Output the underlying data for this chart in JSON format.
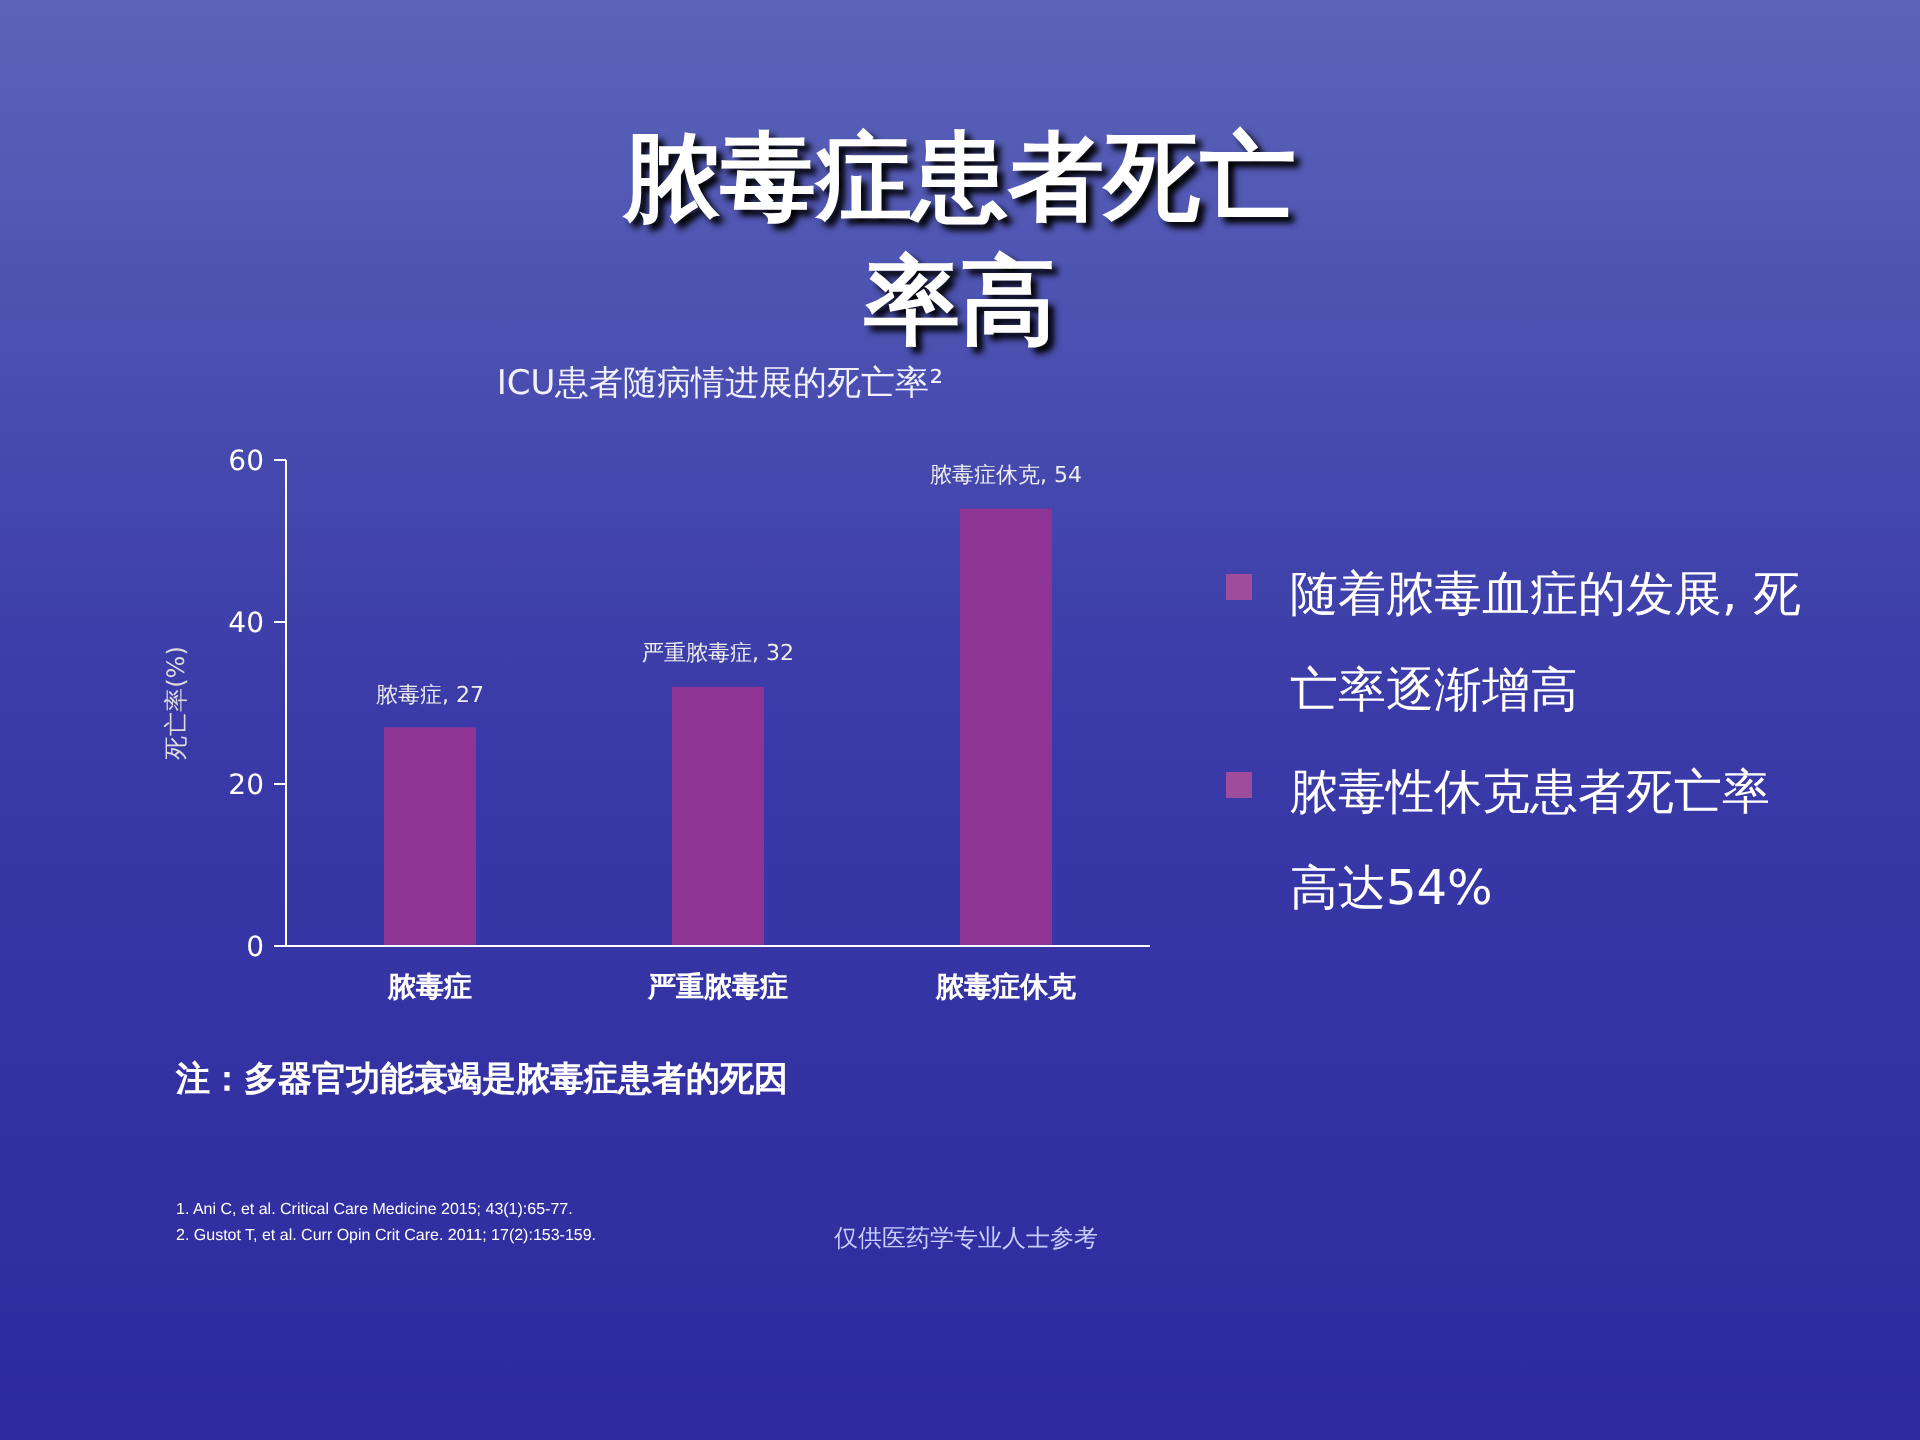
{
  "chart_data": {
    "type": "bar",
    "title": "脓毒症患者死亡率高",
    "subtitle": "ICU患者随病情进展的死亡率²",
    "ylabel": "死亡率(%)",
    "categories": [
      "脓毒症",
      "严重脓毒症",
      "脓毒症休克"
    ],
    "values": [
      27,
      32,
      54
    ],
    "color": "#8e3494",
    "value_labels": [
      "脓毒症, 27",
      "严重脓毒症, 32",
      "脓毒症休克, 54"
    ],
    "ylim": [
      0,
      60
    ],
    "yticks": [
      0,
      20,
      40,
      60
    ],
    "grid": false,
    "annotations": [
      "随着脓毒血症的发展, 死亡率逐渐增高",
      "脓毒性休克患者死亡率高达54%",
      "注：多器官功能衰竭是脓毒症患者的死因",
      "1. Ani C, et al. Critical Care Medicine 2015; 43(1):65-77.",
      "2. Gustot T, et al. Curr Opin Crit Care. 2011; 17(2):153-159.",
      "仅供医药学专业人士参考"
    ]
  }
}
